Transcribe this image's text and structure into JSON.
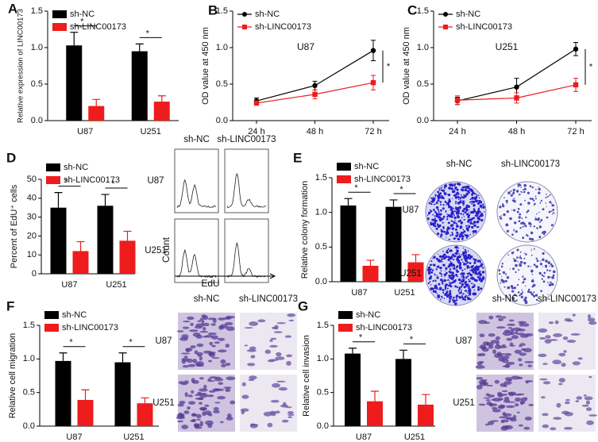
{
  "chart_data": [
    {
      "type": "bar",
      "panel": "A",
      "ylabel": "Relative expression of LINC00173",
      "categories": [
        "U87",
        "U251"
      ],
      "series": [
        {
          "name": "sh-NC",
          "color": "#000000",
          "values": [
            1.03,
            0.95
          ],
          "errors": [
            0.18,
            0.1
          ]
        },
        {
          "name": "sh-LINC00173",
          "color": "#ee1c1c",
          "values": [
            0.2,
            0.26
          ],
          "errors": [
            0.09,
            0.08
          ]
        }
      ],
      "ylim": [
        0,
        1.5
      ],
      "yticks": [
        {
          "value": 0,
          "label": "0.0"
        },
        {
          "value": 0.5,
          "label": "0.5"
        },
        {
          "value": 1,
          "label": "1.0"
        },
        {
          "value": 1.5,
          "label": "1.5"
        }
      ],
      "annotations": [
        "*",
        "*"
      ]
    },
    {
      "type": "line",
      "panel": "B",
      "subtitle": "U87",
      "ylabel": "OD value at 450 nm",
      "categories": [
        "24 h",
        "48 h",
        "72 h"
      ],
      "series": [
        {
          "name": "sh-NC",
          "color": "#000000",
          "marker": "circle",
          "values": [
            0.27,
            0.48,
            0.96
          ],
          "errors": [
            0.04,
            0.06,
            0.14
          ]
        },
        {
          "name": "sh-LINC00173",
          "color": "#ee1c1c",
          "marker": "square",
          "values": [
            0.24,
            0.36,
            0.52
          ],
          "errors": [
            0.03,
            0.06,
            0.1
          ]
        }
      ],
      "ylim": [
        0,
        1.5
      ],
      "yticks": [
        {
          "value": 0,
          "label": "0.0"
        },
        {
          "value": 0.5,
          "label": "0.5"
        },
        {
          "value": 1,
          "label": "1.0"
        },
        {
          "value": 1.5,
          "label": "1.5"
        }
      ],
      "annotations": [
        "*"
      ]
    },
    {
      "type": "line",
      "panel": "C",
      "subtitle": "U251",
      "ylabel": "OD value at 450 nm",
      "categories": [
        "24 h",
        "48 h",
        "72 h"
      ],
      "series": [
        {
          "name": "sh-NC",
          "color": "#000000",
          "marker": "circle",
          "values": [
            0.27,
            0.46,
            0.98
          ],
          "errors": [
            0.05,
            0.12,
            0.09
          ]
        },
        {
          "name": "sh-LINC00173",
          "color": "#ee1c1c",
          "marker": "square",
          "values": [
            0.28,
            0.31,
            0.49
          ],
          "errors": [
            0.06,
            0.07,
            0.09
          ]
        }
      ],
      "ylim": [
        0,
        1.5
      ],
      "yticks": [
        {
          "value": 0,
          "label": "0.0"
        },
        {
          "value": 0.5,
          "label": "0.5"
        },
        {
          "value": 1,
          "label": "1.0"
        },
        {
          "value": 1.5,
          "label": "1.5"
        }
      ],
      "annotations": [
        "*"
      ]
    },
    {
      "type": "bar",
      "panel": "D",
      "ylabel": "Percent of EdU⁺ cells",
      "categories": [
        "U87",
        "U251"
      ],
      "series": [
        {
          "name": "sh-NC",
          "color": "#000000",
          "values": [
            35,
            36
          ],
          "errors": [
            8,
            6
          ]
        },
        {
          "name": "sh-LINC00173",
          "color": "#ee1c1c",
          "values": [
            12,
            17.5
          ],
          "errors": [
            5,
            5
          ]
        }
      ],
      "ylim": [
        0,
        50
      ],
      "yticks": [
        0,
        10,
        20,
        30,
        40,
        50
      ],
      "annotations": [
        "*",
        "*"
      ]
    },
    {
      "type": "bar",
      "panel": "E",
      "ylabel": "Relative colony formation",
      "categories": [
        "U87",
        "U251"
      ],
      "series": [
        {
          "name": "sh-NC",
          "color": "#000000",
          "values": [
            1.1,
            1.08
          ],
          "errors": [
            0.1,
            0.1
          ]
        },
        {
          "name": "sh-LINC00173",
          "color": "#ee1c1c",
          "values": [
            0.23,
            0.28
          ],
          "errors": [
            0.08,
            0.11
          ]
        }
      ],
      "ylim": [
        0,
        1.5
      ],
      "yticks": [
        {
          "value": 0,
          "label": "0.0"
        },
        {
          "value": 0.5,
          "label": "0.5"
        },
        {
          "value": 1,
          "label": "1.0"
        },
        {
          "value": 1.5,
          "label": "1.5"
        }
      ],
      "annotations": [
        "*",
        "*"
      ]
    },
    {
      "type": "bar",
      "panel": "F",
      "ylabel": "Relative cell migration",
      "categories": [
        "U87",
        "U251"
      ],
      "series": [
        {
          "name": "sh-NC",
          "color": "#000000",
          "values": [
            0.97,
            0.95
          ],
          "errors": [
            0.12,
            0.14
          ]
        },
        {
          "name": "sh-LINC00173",
          "color": "#ee1c1c",
          "values": [
            0.39,
            0.34
          ],
          "errors": [
            0.15,
            0.08
          ]
        }
      ],
      "ylim": [
        0,
        1.5
      ],
      "yticks": [
        {
          "value": 0,
          "label": "0.0"
        },
        {
          "value": 0.5,
          "label": "0.5"
        },
        {
          "value": 1,
          "label": "1.0"
        },
        {
          "value": 1.5,
          "label": "1.5"
        }
      ],
      "annotations": [
        "*",
        "*"
      ]
    },
    {
      "type": "bar",
      "panel": "G",
      "ylabel": "Relative cell invasion",
      "categories": [
        "U87",
        "U251"
      ],
      "series": [
        {
          "name": "sh-NC",
          "color": "#000000",
          "values": [
            1.08,
            1.0
          ],
          "errors": [
            0.08,
            0.13
          ]
        },
        {
          "name": "sh-LINC00173",
          "color": "#ee1c1c",
          "values": [
            0.37,
            0.32
          ],
          "errors": [
            0.15,
            0.15
          ]
        }
      ],
      "ylim": [
        0,
        1.5
      ],
      "yticks": [
        {
          "value": 0,
          "label": "0.0"
        },
        {
          "value": 0.5,
          "label": "0.5"
        },
        {
          "value": 1,
          "label": "1.0"
        },
        {
          "value": 1.5,
          "label": "1.5"
        }
      ],
      "annotations": [
        "*",
        "*"
      ]
    }
  ],
  "images": [
    {
      "kind": "flow",
      "columns": [
        "sh-NC",
        "sh-LINC00173"
      ],
      "rows": [
        "U87",
        "U251"
      ],
      "x_label": "EdU",
      "y_label": "Count"
    },
    {
      "kind": "colony",
      "columns": [
        "sh-NC",
        "sh-LINC00173"
      ],
      "rows": [
        "U87",
        "U251"
      ]
    },
    {
      "kind": "stain",
      "columns": [
        "sh-NC",
        "sh-LINC00173"
      ],
      "rows": [
        "U87",
        "U251"
      ]
    },
    {
      "kind": "stain",
      "columns": [
        "sh-NC",
        "sh-LINC00173"
      ],
      "rows": [
        "U87",
        "U251"
      ]
    }
  ]
}
